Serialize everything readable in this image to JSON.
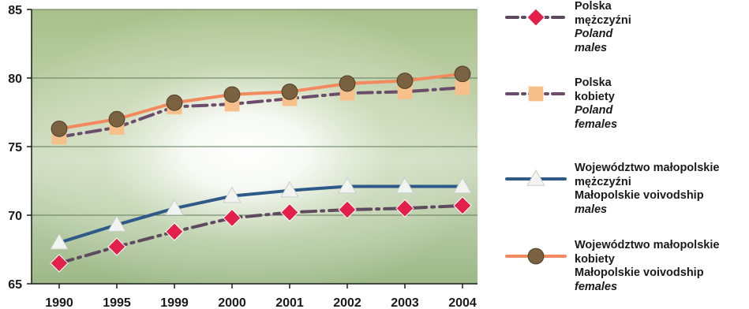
{
  "chart_data": {
    "type": "line",
    "title": "",
    "xlabel": "",
    "ylabel": "",
    "categories": [
      "1990",
      "1995",
      "1999",
      "2000",
      "2001",
      "2002",
      "2003",
      "2004"
    ],
    "ylim": [
      65,
      85
    ],
    "yticks": [
      65,
      70,
      75,
      80,
      85
    ],
    "grid": true,
    "legend_position": "right",
    "series": [
      {
        "key": "pl_m",
        "name": "Polska mężczyźni Poland males",
        "legend_lines": [
          "Polska",
          "mężczyźni",
          "Poland",
          "males"
        ],
        "legend_italic": [
          false,
          false,
          true,
          true
        ],
        "line_color": "#5e4a5e",
        "line_style": "dashdot",
        "marker": "diamond",
        "marker_color": "#e2204b",
        "values": [
          66.5,
          67.7,
          68.8,
          69.8,
          70.2,
          70.4,
          70.5,
          70.7
        ]
      },
      {
        "key": "pl_f",
        "name": "Polska kobiety Poland females",
        "legend_lines": [
          "Polska",
          "kobiety",
          "Poland",
          "females"
        ],
        "legend_italic": [
          false,
          false,
          true,
          true
        ],
        "line_color": "#6b4d6b",
        "line_style": "dashdot",
        "marker": "square",
        "marker_color": "#f7c08a",
        "values": [
          75.7,
          76.4,
          77.9,
          78.1,
          78.5,
          78.9,
          79.0,
          79.3
        ]
      },
      {
        "key": "mp_m",
        "name": "Województwo małopolskie mężczyźni Małopolskie voivodship males",
        "legend_lines": [
          "Województwo małopolskie",
          "mężczyźni",
          "Małopolskie voivodship",
          "males"
        ],
        "legend_italic": [
          false,
          false,
          false,
          true
        ],
        "line_color": "#2e5a8a",
        "line_style": "solid",
        "marker": "triangle",
        "marker_color": "#f2f4f2",
        "values": [
          68.0,
          69.3,
          70.5,
          71.4,
          71.8,
          72.1,
          72.1,
          72.1
        ]
      },
      {
        "key": "mp_f",
        "name": "Województwo małopolskie kobiety Małopolskie voivodship females",
        "legend_lines": [
          "Województwo małopolskie",
          "kobiety",
          "Małopolskie voivodship",
          "females"
        ],
        "legend_italic": [
          false,
          false,
          false,
          true
        ],
        "line_color": "#f28a5e",
        "line_style": "solid",
        "marker": "circle",
        "marker_color": "#7a6240",
        "values": [
          76.3,
          77.0,
          78.2,
          78.8,
          79.0,
          79.6,
          79.8,
          80.3
        ]
      }
    ]
  }
}
